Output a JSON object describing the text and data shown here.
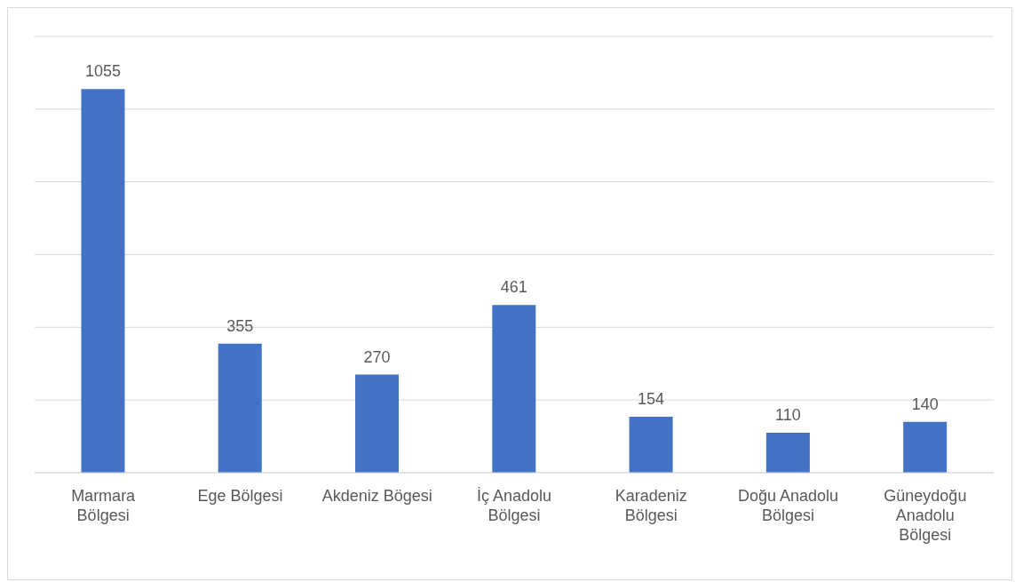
{
  "chart_data": {
    "type": "bar",
    "categories": [
      "Marmara Bölgesi",
      "Ege Bölgesi",
      "Akdeniz Bögesi",
      "İç Anadolu Bölgesi",
      "Karadeniz Bölgesi",
      "Doğu Anadolu Bölgesi",
      "Güneydoğu Anadolu Bölgesi"
    ],
    "values": [
      1055,
      355,
      270,
      461,
      154,
      110,
      140
    ],
    "color": "#4472c4",
    "ylim": [
      0,
      1200
    ],
    "grid": "y",
    "tick_labels": "x",
    "data_labels": true,
    "legend": false
  }
}
